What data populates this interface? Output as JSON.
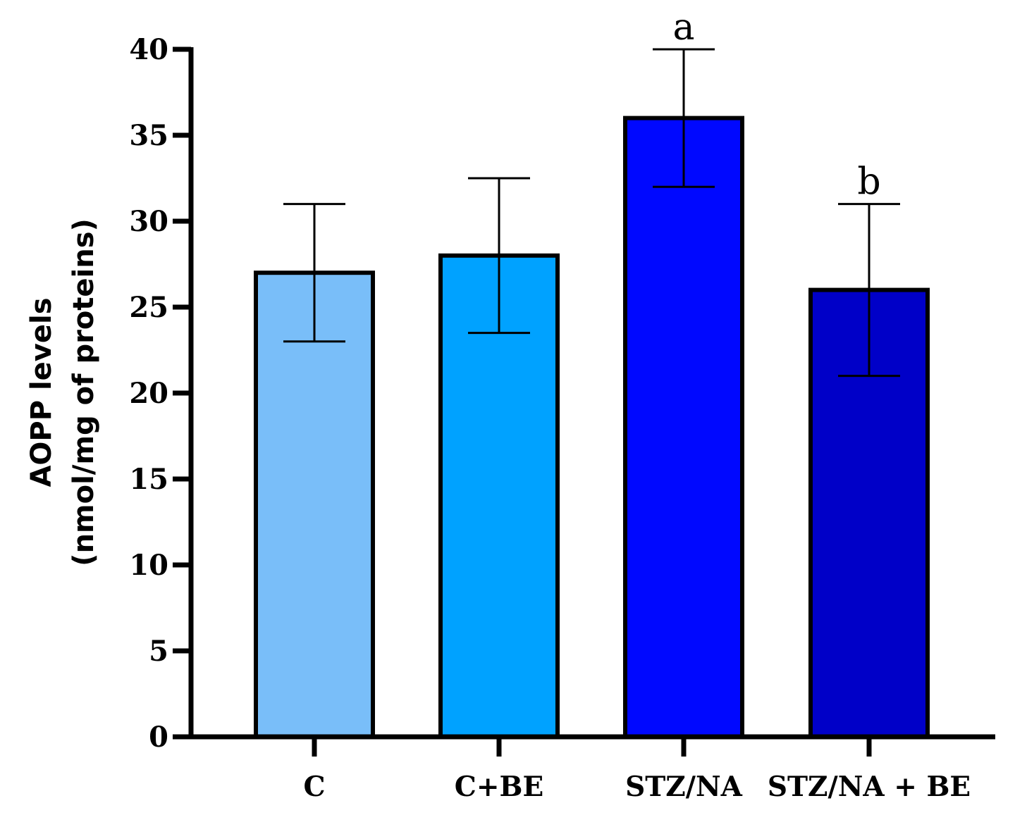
{
  "chart_data": {
    "type": "bar",
    "categories": [
      "C",
      "C+BE",
      "STZ/NA",
      "STZ/NA + BE"
    ],
    "values": [
      27,
      28,
      36,
      26
    ],
    "errors": [
      4,
      4.5,
      4,
      5
    ],
    "significance": [
      "",
      "",
      "a",
      "b"
    ],
    "colors": [
      "#79BEF9",
      "#00A2FF",
      "#0008FF",
      "#0000C8"
    ],
    "ylabel_line1": "AOPP levels",
    "ylabel_line2": "(nmol/mg of proteins)",
    "xlabel": "",
    "title": "",
    "ylim": [
      0,
      40
    ],
    "yticks": [
      0,
      5,
      10,
      15,
      20,
      25,
      30,
      35,
      40
    ],
    "grid": false,
    "legend": "none"
  }
}
